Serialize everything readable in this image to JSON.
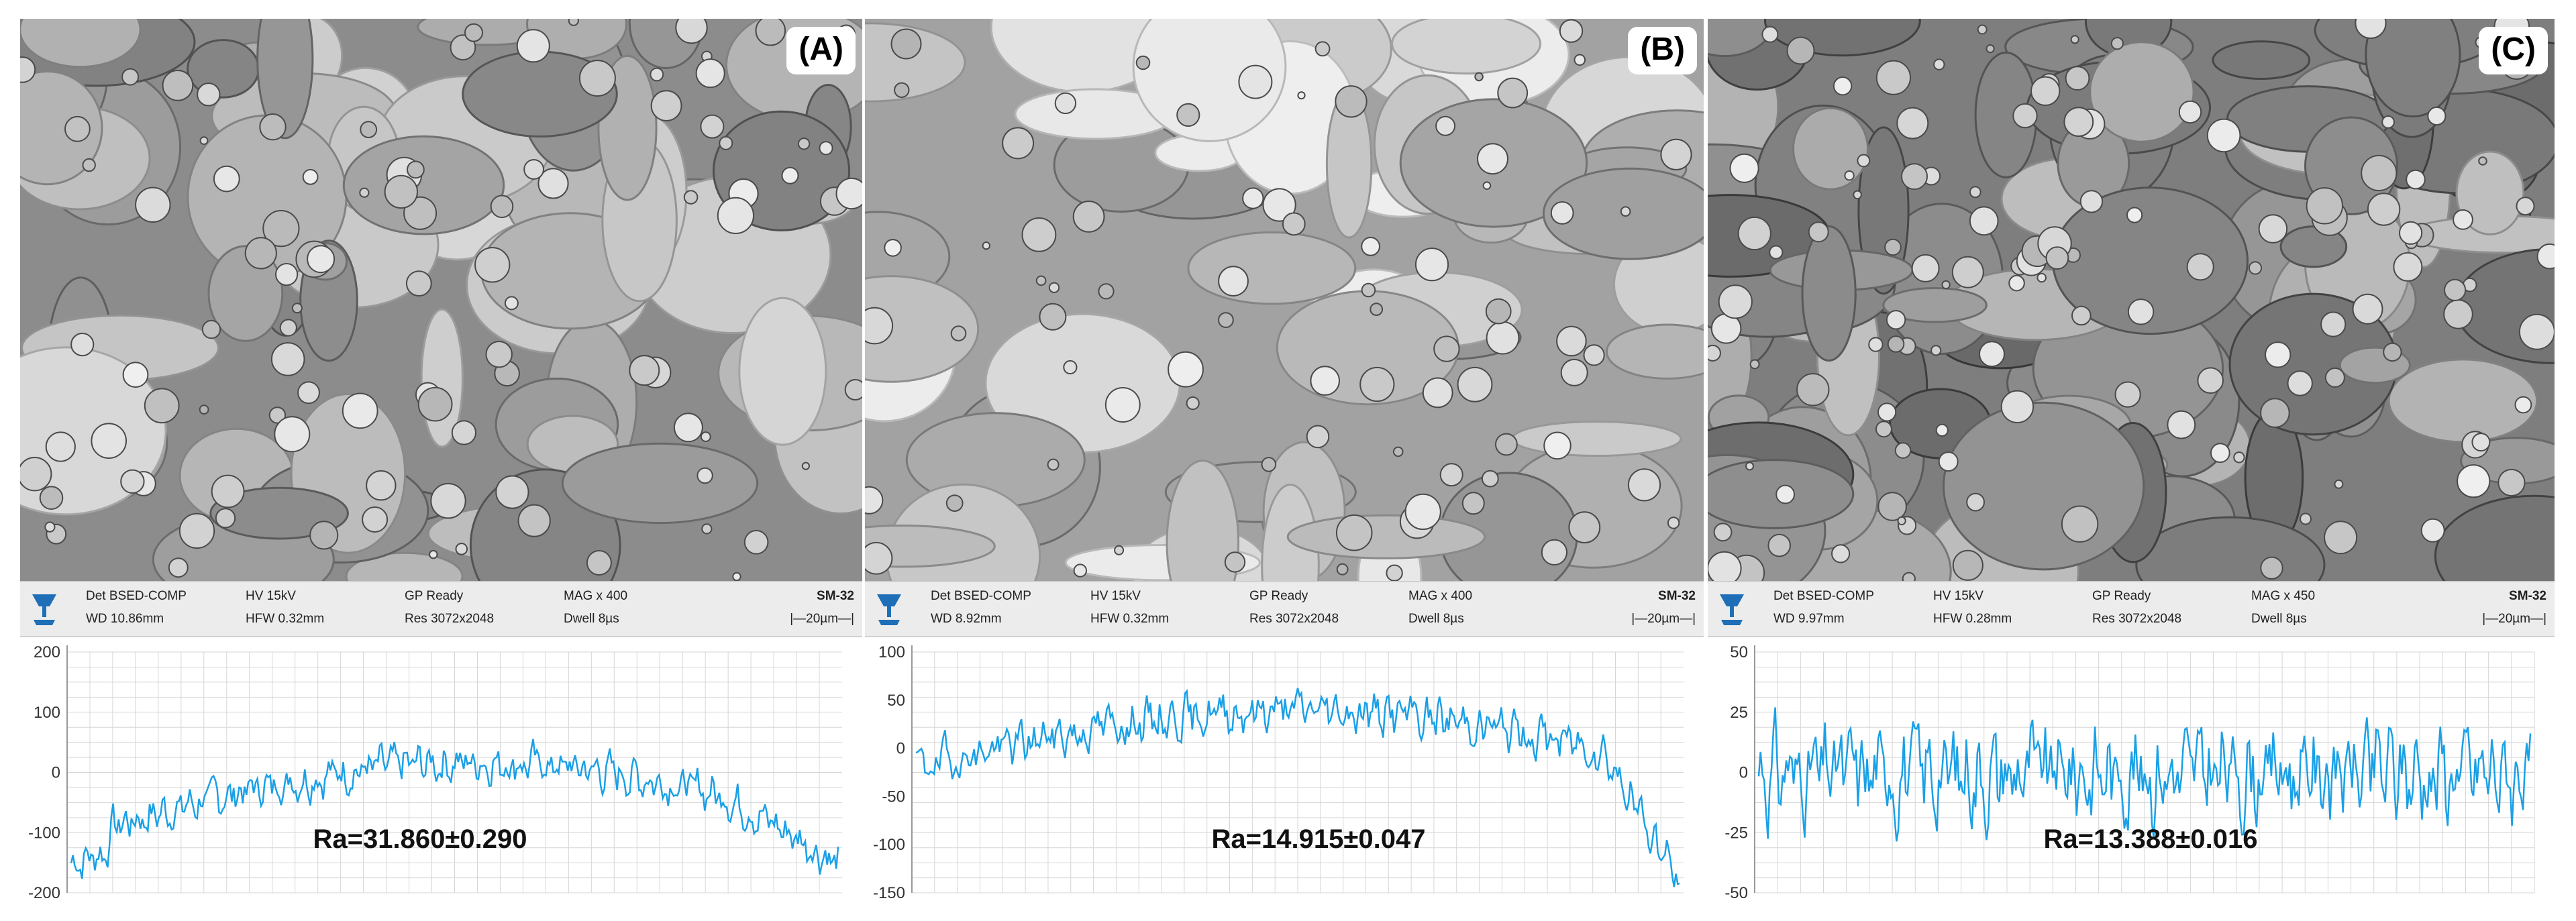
{
  "colors": {
    "profile_line": "#1aa0e6",
    "grid": "#d6d6d6",
    "info_bar": "#ececec",
    "detector_icon": "#1e6fb8"
  },
  "panels": [
    {
      "label": "(A)",
      "detector": "Det BSED-COMP",
      "hv": "HV 15kV",
      "gp": "GP Ready",
      "mag": "MAG x 400",
      "stage": "SM-32",
      "wd": "WD 10.86mm",
      "hfw": "HFW 0.32mm",
      "res": "Res 3072x2048",
      "dwell": "Dwell 8µs",
      "scale": "|—20µm—|",
      "ra": "Ra=31.860±0.290",
      "yticks": [
        "200",
        "100",
        "0",
        "-100",
        "-200"
      ],
      "ylim": [
        -200,
        200
      ]
    },
    {
      "label": "(B)",
      "detector": "Det BSED-COMP",
      "hv": "HV 15kV",
      "gp": "GP Ready",
      "mag": "MAG x 400",
      "stage": "SM-32",
      "wd": "WD 8.92mm",
      "hfw": "HFW 0.32mm",
      "res": "Res 3072x2048",
      "dwell": "Dwell 8µs",
      "scale": "|—20µm—|",
      "ra": "Ra=14.915±0.047",
      "yticks": [
        "100",
        "50",
        "0",
        "-50",
        "-100",
        "-150"
      ],
      "ylim": [
        -150,
        100
      ]
    },
    {
      "label": "(C)",
      "detector": "Det BSED-COMP",
      "hv": "HV 15kV",
      "gp": "GP Ready",
      "mag": "MAG x 450",
      "stage": "SM-32",
      "wd": "WD 9.97mm",
      "hfw": "HFW 0.28mm",
      "res": "Res 3072x2048",
      "dwell": "Dwell 8µs",
      "scale": "|—20µm—|",
      "ra": "Ra=13.388±0.016",
      "yticks": [
        "50",
        "25",
        "0",
        "-25",
        "-50"
      ],
      "ylim": [
        -50,
        50
      ]
    }
  ]
}
